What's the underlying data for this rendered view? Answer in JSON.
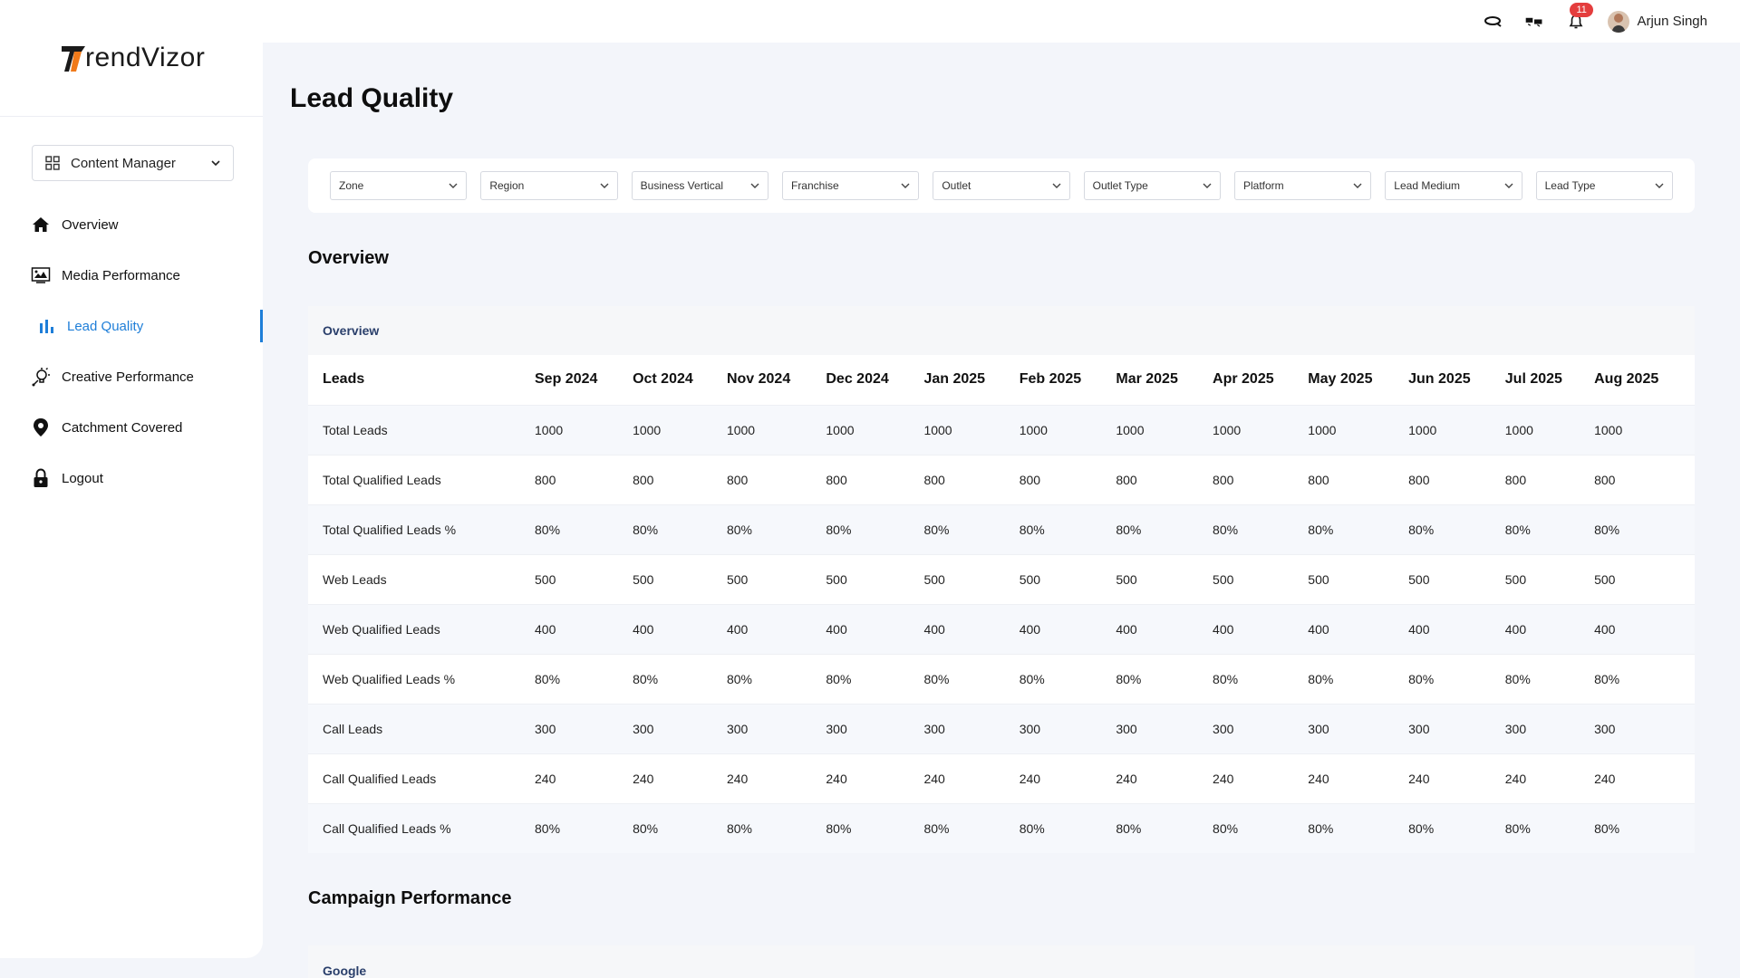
{
  "logo": {
    "text": "rendVizor"
  },
  "sidebar": {
    "content_manager": "Content Manager",
    "items": [
      {
        "label": "Overview",
        "icon": "home-icon"
      },
      {
        "label": "Media Performance",
        "icon": "media-icon"
      },
      {
        "label": "Lead Quality",
        "icon": "bar-chart-icon",
        "active": true
      },
      {
        "label": "Creative Performance",
        "icon": "bulb-icon"
      },
      {
        "label": "Catchment Covered",
        "icon": "location-pin-icon"
      },
      {
        "label": "Logout",
        "icon": "lock-icon"
      }
    ]
  },
  "topbar": {
    "notification_count": "11",
    "user_name": "Arjun Singh"
  },
  "page": {
    "title": "Lead Quality"
  },
  "filters": [
    "Zone",
    "Region",
    "Business Vertical",
    "Franchise",
    "Outlet",
    "Outlet Type",
    "Platform",
    "Lead Medium",
    "Lead Type"
  ],
  "overview": {
    "section_title": "Overview",
    "card_title": "Overview",
    "columns": [
      "Leads",
      "Sep 2024",
      "Oct 2024",
      "Nov 2024",
      "Dec 2024",
      "Jan 2025",
      "Feb 2025",
      "Mar 2025",
      "Apr 2025",
      "May 2025",
      "Jun 2025",
      "Jul 2025",
      "Aug 2025"
    ],
    "rows": [
      {
        "label": "Total Leads",
        "values": [
          "1000",
          "1000",
          "1000",
          "1000",
          "1000",
          "1000",
          "1000",
          "1000",
          "1000",
          "1000",
          "1000",
          "1000"
        ]
      },
      {
        "label": "Total Qualified Leads",
        "values": [
          "800",
          "800",
          "800",
          "800",
          "800",
          "800",
          "800",
          "800",
          "800",
          "800",
          "800",
          "800"
        ]
      },
      {
        "label": "Total Qualified Leads %",
        "values": [
          "80%",
          "80%",
          "80%",
          "80%",
          "80%",
          "80%",
          "80%",
          "80%",
          "80%",
          "80%",
          "80%",
          "80%"
        ]
      },
      {
        "label": "Web Leads",
        "values": [
          "500",
          "500",
          "500",
          "500",
          "500",
          "500",
          "500",
          "500",
          "500",
          "500",
          "500",
          "500"
        ]
      },
      {
        "label": "Web Qualified Leads",
        "values": [
          "400",
          "400",
          "400",
          "400",
          "400",
          "400",
          "400",
          "400",
          "400",
          "400",
          "400",
          "400"
        ]
      },
      {
        "label": "Web Qualified Leads %",
        "values": [
          "80%",
          "80%",
          "80%",
          "80%",
          "80%",
          "80%",
          "80%",
          "80%",
          "80%",
          "80%",
          "80%",
          "80%"
        ]
      },
      {
        "label": "Call Leads",
        "values": [
          "300",
          "300",
          "300",
          "300",
          "300",
          "300",
          "300",
          "300",
          "300",
          "300",
          "300",
          "300"
        ]
      },
      {
        "label": "Call Qualified Leads",
        "values": [
          "240",
          "240",
          "240",
          "240",
          "240",
          "240",
          "240",
          "240",
          "240",
          "240",
          "240",
          "240"
        ]
      },
      {
        "label": "Call Qualified Leads %",
        "values": [
          "80%",
          "80%",
          "80%",
          "80%",
          "80%",
          "80%",
          "80%",
          "80%",
          "80%",
          "80%",
          "80%",
          "80%"
        ]
      }
    ]
  },
  "campaign": {
    "section_title": "Campaign Performance",
    "card_title": "Google"
  },
  "colors": {
    "accent": "#1e7ed8",
    "badge": "#e43d3d",
    "logo_mark": "#f07a1a"
  }
}
